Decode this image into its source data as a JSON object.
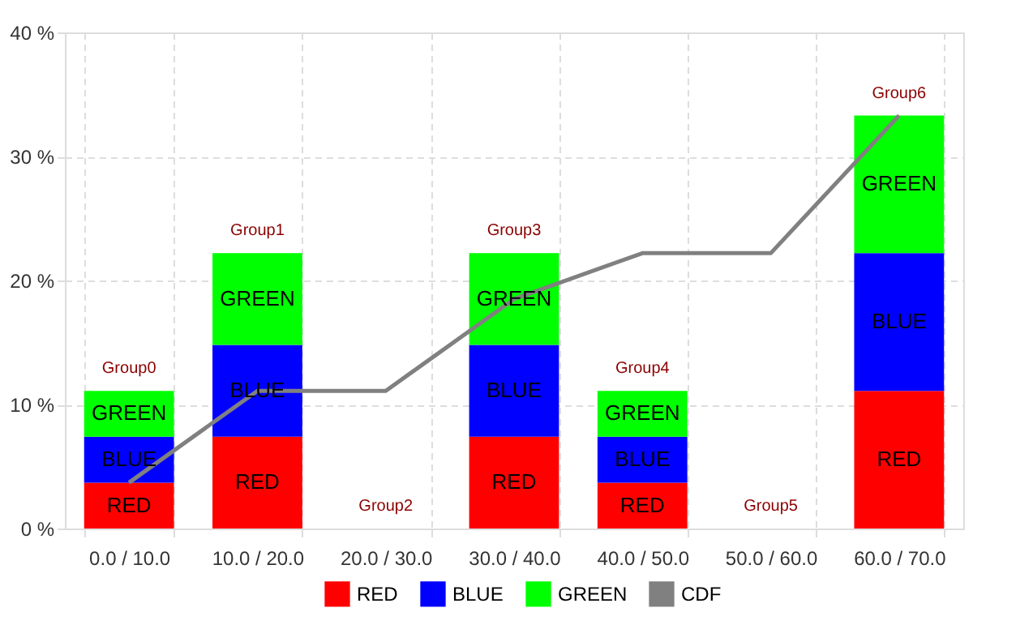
{
  "chart_data": {
    "type": "bar",
    "stacked": true,
    "categories": [
      "0.0 / 10.0",
      "10.0 / 20.0",
      "20.0 / 30.0",
      "30.0 / 40.0",
      "40.0 / 50.0",
      "50.0 / 60.0",
      "60.0 / 70.0"
    ],
    "series": [
      {
        "name": "RED",
        "color": "#ff0000",
        "values": [
          3.7,
          7.4,
          0,
          7.4,
          3.7,
          0,
          11.1
        ],
        "value_labels": [
          "RED",
          "RED",
          null,
          "RED",
          "RED",
          null,
          "RED"
        ]
      },
      {
        "name": "BLUE",
        "color": "#0000ff",
        "values": [
          3.7,
          7.4,
          0,
          7.4,
          3.7,
          0,
          11.1
        ],
        "value_labels": [
          "BLUE",
          "BLUE",
          null,
          "BLUE",
          "BLUE",
          null,
          "BLUE"
        ]
      },
      {
        "name": "GREEN",
        "color": "#00ff00",
        "values": [
          3.7,
          7.4,
          0,
          7.4,
          3.7,
          0,
          11.1
        ],
        "value_labels": [
          "GREEN",
          "GREEN",
          null,
          "GREEN",
          "GREEN",
          null,
          "GREEN"
        ]
      },
      {
        "name": "CDF",
        "color": "#808080",
        "type": "line",
        "values": [
          3.7,
          11.1,
          11.1,
          18.5,
          22.2,
          22.2,
          33.3
        ]
      }
    ],
    "ylim": [
      0,
      40
    ],
    "yticks": [
      {
        "value": 0,
        "label": "0 %"
      },
      {
        "value": 10,
        "label": "10 %"
      },
      {
        "value": 20,
        "label": "20 %"
      },
      {
        "value": 30,
        "label": "30 %"
      },
      {
        "value": 40,
        "label": "40 %"
      }
    ],
    "grid": true,
    "legend": "bottom",
    "annotations": [
      {
        "text": "Group0",
        "x": "0.0 / 10.0",
        "y": 11.1
      },
      {
        "text": "Group1",
        "x": "10.0 / 20.0",
        "y": 22.2
      },
      {
        "text": "Group2",
        "x": "20.0 / 30.0",
        "y": 0
      },
      {
        "text": "Group3",
        "x": "30.0 / 40.0",
        "y": 22.2
      },
      {
        "text": "Group4",
        "x": "40.0 / 50.0",
        "y": 11.1
      },
      {
        "text": "Group5",
        "x": "50.0 / 60.0",
        "y": 0
      },
      {
        "text": "Group6",
        "x": "60.0 / 70.0",
        "y": 33.3
      }
    ]
  }
}
